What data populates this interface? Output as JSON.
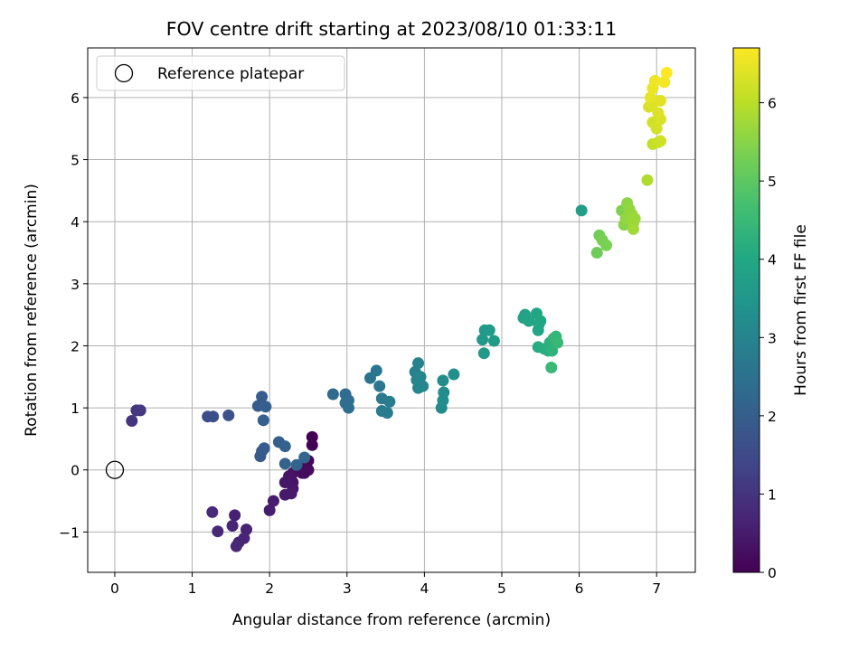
{
  "chart_data": {
    "type": "scatter",
    "title": "FOV centre drift starting at 2023/08/10 01:33:11",
    "xlabel": "Angular distance from reference (arcmin)",
    "ylabel": "Rotation from reference (arcmin)",
    "xlim": [
      -0.35,
      7.5
    ],
    "ylim": [
      -1.65,
      6.8
    ],
    "xticks": [
      0,
      1,
      2,
      3,
      4,
      5,
      6,
      7
    ],
    "yticks": [
      -1,
      0,
      1,
      2,
      3,
      4,
      5,
      6
    ],
    "grid": true,
    "legend": {
      "position": "top-left",
      "entries": [
        "Reference platepar"
      ]
    },
    "reference_point": {
      "x": 0,
      "y": 0
    },
    "colormap": "viridis",
    "colorbar": {
      "label": "Hours from first FF file",
      "range": [
        0,
        6.7
      ],
      "ticks": [
        0,
        1,
        2,
        3,
        4,
        5,
        6
      ]
    },
    "points": [
      {
        "x": 2.55,
        "y": 0.53,
        "t": 0.0
      },
      {
        "x": 2.55,
        "y": 0.4,
        "t": 0.05
      },
      {
        "x": 2.5,
        "y": 0.15,
        "t": 0.1
      },
      {
        "x": 2.45,
        "y": 0.08,
        "t": 0.15
      },
      {
        "x": 2.5,
        "y": 0.0,
        "t": 0.2
      },
      {
        "x": 2.42,
        "y": -0.05,
        "t": 0.25
      },
      {
        "x": 2.35,
        "y": 0.05,
        "t": 0.3
      },
      {
        "x": 2.3,
        "y": -0.05,
        "t": 0.3
      },
      {
        "x": 2.25,
        "y": -0.1,
        "t": 0.35
      },
      {
        "x": 2.3,
        "y": -0.2,
        "t": 0.35
      },
      {
        "x": 2.2,
        "y": -0.2,
        "t": 0.4
      },
      {
        "x": 2.3,
        "y": -0.3,
        "t": 0.4
      },
      {
        "x": 2.2,
        "y": -0.4,
        "t": 0.45
      },
      {
        "x": 2.28,
        "y": -0.38,
        "t": 0.45
      },
      {
        "x": 2.45,
        "y": -0.05,
        "t": 0.2
      },
      {
        "x": 2.05,
        "y": -0.5,
        "t": 0.5
      },
      {
        "x": 2.0,
        "y": -0.65,
        "t": 0.55
      },
      {
        "x": 1.55,
        "y": -0.73,
        "t": 0.6
      },
      {
        "x": 1.7,
        "y": -0.96,
        "t": 0.65
      },
      {
        "x": 1.67,
        "y": -1.1,
        "t": 0.7
      },
      {
        "x": 1.6,
        "y": -1.17,
        "t": 0.72
      },
      {
        "x": 1.57,
        "y": -1.23,
        "t": 0.75
      },
      {
        "x": 1.52,
        "y": -0.9,
        "t": 0.7
      },
      {
        "x": 1.33,
        "y": -0.99,
        "t": 0.75
      },
      {
        "x": 1.26,
        "y": -0.68,
        "t": 0.8
      },
      {
        "x": 0.22,
        "y": 0.79,
        "t": 1.0
      },
      {
        "x": 0.28,
        "y": 0.96,
        "t": 1.05
      },
      {
        "x": 0.33,
        "y": 0.96,
        "t": 1.1
      },
      {
        "x": 1.2,
        "y": 0.86,
        "t": 1.6
      },
      {
        "x": 1.27,
        "y": 0.86,
        "t": 1.65
      },
      {
        "x": 1.47,
        "y": 0.88,
        "t": 1.7
      },
      {
        "x": 1.9,
        "y": 0.3,
        "t": 1.85
      },
      {
        "x": 1.88,
        "y": 0.22,
        "t": 1.88
      },
      {
        "x": 1.93,
        "y": 0.35,
        "t": 1.9
      },
      {
        "x": 1.85,
        "y": 1.03,
        "t": 1.9
      },
      {
        "x": 1.9,
        "y": 1.18,
        "t": 1.95
      },
      {
        "x": 1.95,
        "y": 1.02,
        "t": 2.0
      },
      {
        "x": 1.92,
        "y": 0.8,
        "t": 2.0
      },
      {
        "x": 2.12,
        "y": 0.45,
        "t": 2.05
      },
      {
        "x": 2.2,
        "y": 0.38,
        "t": 2.1
      },
      {
        "x": 2.2,
        "y": 0.1,
        "t": 2.1
      },
      {
        "x": 2.35,
        "y": 0.08,
        "t": 2.15
      },
      {
        "x": 2.45,
        "y": 0.2,
        "t": 2.2
      },
      {
        "x": 2.82,
        "y": 1.22,
        "t": 2.3
      },
      {
        "x": 2.98,
        "y": 1.22,
        "t": 2.35
      },
      {
        "x": 2.98,
        "y": 1.08,
        "t": 2.4
      },
      {
        "x": 3.02,
        "y": 1.0,
        "t": 2.45
      },
      {
        "x": 3.02,
        "y": 1.12,
        "t": 2.4
      },
      {
        "x": 3.3,
        "y": 1.48,
        "t": 2.55
      },
      {
        "x": 3.38,
        "y": 1.6,
        "t": 2.6
      },
      {
        "x": 3.42,
        "y": 1.35,
        "t": 2.65
      },
      {
        "x": 3.45,
        "y": 1.15,
        "t": 2.7
      },
      {
        "x": 3.45,
        "y": 0.95,
        "t": 2.75
      },
      {
        "x": 3.52,
        "y": 0.92,
        "t": 2.78
      },
      {
        "x": 3.55,
        "y": 1.1,
        "t": 2.8
      },
      {
        "x": 3.88,
        "y": 1.58,
        "t": 2.9
      },
      {
        "x": 3.92,
        "y": 1.72,
        "t": 2.95
      },
      {
        "x": 3.9,
        "y": 1.45,
        "t": 3.0
      },
      {
        "x": 3.92,
        "y": 1.32,
        "t": 3.0
      },
      {
        "x": 3.95,
        "y": 1.5,
        "t": 3.05
      },
      {
        "x": 3.98,
        "y": 1.35,
        "t": 3.05
      },
      {
        "x": 4.22,
        "y": 1.0,
        "t": 3.2
      },
      {
        "x": 4.24,
        "y": 1.12,
        "t": 3.22
      },
      {
        "x": 4.25,
        "y": 1.25,
        "t": 3.25
      },
      {
        "x": 4.24,
        "y": 1.44,
        "t": 3.25
      },
      {
        "x": 4.38,
        "y": 1.54,
        "t": 3.3
      },
      {
        "x": 4.75,
        "y": 2.1,
        "t": 3.55
      },
      {
        "x": 4.78,
        "y": 2.25,
        "t": 3.6
      },
      {
        "x": 4.77,
        "y": 1.88,
        "t": 3.6
      },
      {
        "x": 4.84,
        "y": 2.25,
        "t": 3.62
      },
      {
        "x": 4.9,
        "y": 2.08,
        "t": 3.65
      },
      {
        "x": 5.28,
        "y": 2.45,
        "t": 3.85
      },
      {
        "x": 5.3,
        "y": 2.5,
        "t": 3.85
      },
      {
        "x": 5.35,
        "y": 2.4,
        "t": 3.9
      },
      {
        "x": 5.45,
        "y": 2.52,
        "t": 3.9
      },
      {
        "x": 5.48,
        "y": 2.35,
        "t": 3.95
      },
      {
        "x": 5.47,
        "y": 2.25,
        "t": 3.95
      },
      {
        "x": 5.5,
        "y": 2.4,
        "t": 4.0
      },
      {
        "x": 5.47,
        "y": 1.98,
        "t": 4.1
      },
      {
        "x": 5.55,
        "y": 1.95,
        "t": 4.15
      },
      {
        "x": 5.6,
        "y": 1.92,
        "t": 4.2
      },
      {
        "x": 5.62,
        "y": 2.05,
        "t": 4.25
      },
      {
        "x": 5.65,
        "y": 1.92,
        "t": 4.3
      },
      {
        "x": 5.67,
        "y": 2.12,
        "t": 4.35
      },
      {
        "x": 5.7,
        "y": 2.15,
        "t": 4.4
      },
      {
        "x": 5.72,
        "y": 2.05,
        "t": 4.45
      },
      {
        "x": 5.64,
        "y": 1.65,
        "t": 4.5
      },
      {
        "x": 6.03,
        "y": 4.18,
        "t": 3.7
      },
      {
        "x": 6.23,
        "y": 3.5,
        "t": 5.2
      },
      {
        "x": 6.26,
        "y": 3.78,
        "t": 5.25
      },
      {
        "x": 6.3,
        "y": 3.7,
        "t": 5.3
      },
      {
        "x": 6.35,
        "y": 3.62,
        "t": 5.35
      },
      {
        "x": 6.55,
        "y": 4.18,
        "t": 5.4
      },
      {
        "x": 6.58,
        "y": 3.95,
        "t": 5.5
      },
      {
        "x": 6.6,
        "y": 4.05,
        "t": 5.6
      },
      {
        "x": 6.62,
        "y": 4.3,
        "t": 5.55
      },
      {
        "x": 6.65,
        "y": 4.2,
        "t": 5.6
      },
      {
        "x": 6.68,
        "y": 4.12,
        "t": 5.65
      },
      {
        "x": 6.7,
        "y": 3.98,
        "t": 5.7
      },
      {
        "x": 6.7,
        "y": 3.88,
        "t": 5.75
      },
      {
        "x": 6.72,
        "y": 4.05,
        "t": 5.7
      },
      {
        "x": 6.88,
        "y": 4.67,
        "t": 5.9
      },
      {
        "x": 6.95,
        "y": 5.25,
        "t": 6.1
      },
      {
        "x": 7.02,
        "y": 5.28,
        "t": 6.15
      },
      {
        "x": 7.05,
        "y": 5.3,
        "t": 6.2
      },
      {
        "x": 6.95,
        "y": 5.6,
        "t": 6.2
      },
      {
        "x": 7.0,
        "y": 5.5,
        "t": 6.25
      },
      {
        "x": 7.05,
        "y": 5.65,
        "t": 6.3
      },
      {
        "x": 6.9,
        "y": 5.85,
        "t": 6.3
      },
      {
        "x": 6.95,
        "y": 5.9,
        "t": 6.35
      },
      {
        "x": 7.02,
        "y": 5.75,
        "t": 6.35
      },
      {
        "x": 7.05,
        "y": 5.95,
        "t": 6.4
      },
      {
        "x": 6.92,
        "y": 6.0,
        "t": 6.45
      },
      {
        "x": 6.95,
        "y": 6.15,
        "t": 6.5
      },
      {
        "x": 6.98,
        "y": 6.27,
        "t": 6.55
      },
      {
        "x": 7.1,
        "y": 6.25,
        "t": 6.6
      },
      {
        "x": 7.13,
        "y": 6.4,
        "t": 6.7
      }
    ]
  }
}
